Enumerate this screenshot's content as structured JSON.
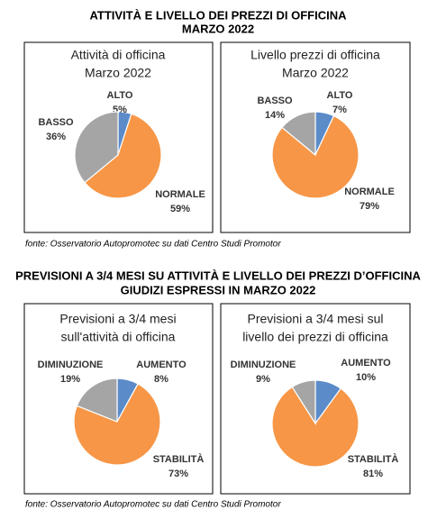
{
  "sections": [
    {
      "title": [
        "ATTIVITÀ E LIVELLO DEI PREZZI DI OFFICINA",
        "MARZO 2022"
      ],
      "source": "fonte: Osservatorio Autopromotec su dati Centro Studi Promotor"
    },
    {
      "title": [
        "PREVISIONI A 3/4 MESI SU ATTIVITÀ E LIVELLO DEI PREZZI D’OFFICINA",
        "GIUDIZI ESPRESSI IN MARZO 2022"
      ],
      "source": "fonte: Osservatorio Autopromotec su dati Centro Studi Promotor"
    }
  ],
  "chart_data": [
    {
      "type": "pie",
      "title": [
        "Attività di officina",
        "Marzo 2022"
      ],
      "categories": [
        "ALTO",
        "NORMALE",
        "BASSO"
      ],
      "values": [
        5,
        59,
        36
      ],
      "value_labels": [
        "5%",
        "59%",
        "36%"
      ],
      "colors": [
        "#5b8bc9",
        "#f79646",
        "#a5a5a5"
      ]
    },
    {
      "type": "pie",
      "title": [
        "Livello prezzi di officina",
        "Marzo 2022"
      ],
      "categories": [
        "ALTO",
        "NORMALE",
        "BASSO"
      ],
      "values": [
        7,
        79,
        14
      ],
      "value_labels": [
        "7%",
        "79%",
        "14%"
      ],
      "colors": [
        "#5b8bc9",
        "#f79646",
        "#a5a5a5"
      ]
    },
    {
      "type": "pie",
      "title": [
        "Previsioni a 3/4 mesi",
        "sull'attività di officina"
      ],
      "categories": [
        "AUMENTO",
        "STABILITÀ",
        "DIMINUZIONE"
      ],
      "values": [
        8,
        73,
        19
      ],
      "value_labels": [
        "8%",
        "73%",
        "19%"
      ],
      "colors": [
        "#5b8bc9",
        "#f79646",
        "#a5a5a5"
      ]
    },
    {
      "type": "pie",
      "title": [
        "Previsioni a 3/4 mesi sul",
        "livello dei prezzi di officina"
      ],
      "categories": [
        "AUMENTO",
        "STABILITÀ",
        "DIMINUZIONE"
      ],
      "values": [
        10,
        81,
        9
      ],
      "value_labels": [
        "10%",
        "81%",
        "9%"
      ],
      "colors": [
        "#5b8bc9",
        "#f79646",
        "#a5a5a5"
      ]
    }
  ]
}
